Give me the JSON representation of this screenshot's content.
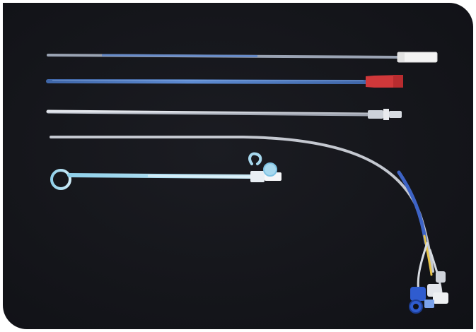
{
  "photo": {
    "background": "#15161b",
    "colors": {
      "wire": "#b9bdc6",
      "blue_tube": "#4f7bbf",
      "clear_tube": "#c9ced8",
      "red_hub": "#d0383a",
      "white_hub": "#f2f2f2",
      "pigtail_blue": "#9fd3ea",
      "connector_blue": "#2f5ccf",
      "yellow_lead": "#e7c44a"
    },
    "items": [
      {
        "id": "dilator-white-hub"
      },
      {
        "id": "dilator-red-hub"
      },
      {
        "id": "sheath-clear"
      },
      {
        "id": "long-catheter-with-connectors"
      },
      {
        "id": "pigtail-drain"
      }
    ]
  }
}
